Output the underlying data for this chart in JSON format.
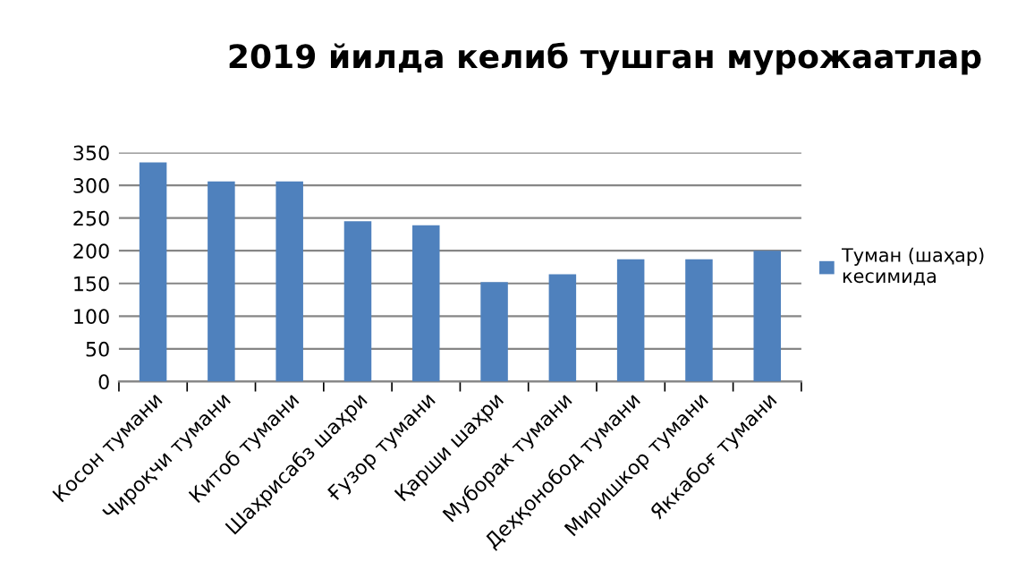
{
  "chart_data": {
    "type": "bar",
    "title": "2019 йилда келиб тушган мурожаатлар",
    "categories": [
      "Косон тумани",
      "Чироқчи тумани",
      "Китоб тумани",
      "Шаҳрисабз шаҳри",
      "Ғузор тумани",
      "Қарши шаҳри",
      "Муборак тумани",
      "Деҳқонобод тумани",
      "Миришкор тумани",
      "Яккабоғ тумани"
    ],
    "series": [
      {
        "name": "Туман (шаҳар) кесимида",
        "color": "#4f81bd",
        "values": [
          335,
          306,
          306,
          245,
          239,
          152,
          164,
          187,
          187,
          200
        ]
      }
    ],
    "ylim": [
      0,
      350
    ],
    "yticks": [
      0,
      50,
      100,
      150,
      200,
      250,
      300,
      350
    ],
    "grid": "y",
    "legend": "right"
  }
}
